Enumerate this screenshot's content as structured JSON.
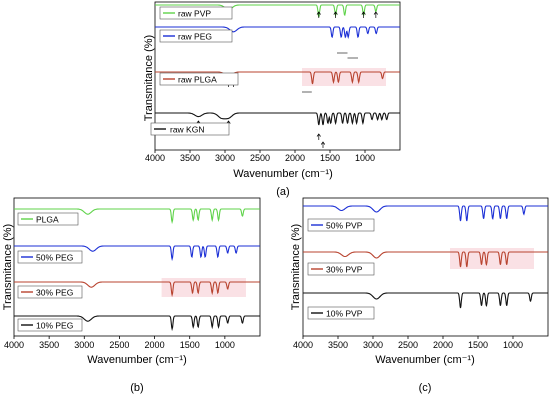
{
  "figure": {
    "colors": {
      "green": "#5fd34a",
      "blue": "#1b2fd6",
      "red": "#b8432f",
      "black": "#111111",
      "axis": "#000000",
      "highlight": "#f5bcc6"
    }
  },
  "chart_data": [
    {
      "type": "line",
      "panel_label": "(a)",
      "xlabel": "Wavenumber (cm⁻¹)",
      "ylabel": "Transmitance (%)",
      "xlim": [
        4000,
        500
      ],
      "x_reversed": true,
      "x_ticks": [
        4000,
        3500,
        3000,
        2500,
        2000,
        1500,
        1000
      ],
      "series": [
        {
          "name": "raw PVP",
          "color": "green",
          "peaks": [
            2950,
            1660,
            1420,
            1290,
            1020,
            845
          ]
        },
        {
          "name": "raw PEG",
          "color": "blue",
          "peaks": [
            2880,
            1470,
            1340,
            1280,
            1240,
            1100,
            960,
            840
          ]
        },
        {
          "name": "raw PLGA",
          "color": "red",
          "peaks": [
            2950,
            1750,
            1450,
            1380,
            1180,
            1090,
            750
          ]
        },
        {
          "name": "raw KGN",
          "color": "black",
          "peaks": [
            3380,
            3050,
            2950,
            1660,
            1600,
            1530,
            1490,
            1420,
            1320,
            1250,
            1180,
            1120,
            1030,
            900,
            820,
            760,
            690
          ]
        }
      ]
    },
    {
      "type": "line",
      "panel_label": "(b)",
      "xlabel": "Wavenumber (cm⁻¹)",
      "ylabel": "Transmitance (%)",
      "xlim": [
        4000,
        500
      ],
      "x_reversed": true,
      "x_ticks": [
        4000,
        3500,
        3000,
        2500,
        2000,
        1500,
        1000
      ],
      "series": [
        {
          "name": "PLGA",
          "color": "green",
          "peaks": [
            2950,
            1750,
            1450,
            1380,
            1180,
            1090,
            750
          ]
        },
        {
          "name": "50% PEG",
          "color": "blue",
          "peaks": [
            2880,
            1750,
            1470,
            1340,
            1280,
            1100,
            960,
            840
          ]
        },
        {
          "name": "30% PEG",
          "color": "red",
          "peaks": [
            2900,
            1750,
            1460,
            1380,
            1180,
            1100,
            960
          ]
        },
        {
          "name": "10% PEG",
          "color": "black",
          "peaks": [
            2950,
            1750,
            1450,
            1380,
            1180,
            1090,
            960,
            750
          ]
        }
      ]
    },
    {
      "type": "line",
      "panel_label": "(c)",
      "xlabel": "Wavenumber (cm⁻¹)",
      "ylabel": "Transmitance (%)",
      "xlim": [
        4000,
        500
      ],
      "x_reversed": true,
      "x_ticks": [
        4000,
        3500,
        3000,
        2500,
        2000,
        1500,
        1000
      ],
      "series": [
        {
          "name": "50% PVP",
          "color": "blue",
          "peaks": [
            3450,
            2950,
            1750,
            1660,
            1420,
            1290,
            1180,
            1090,
            845
          ]
        },
        {
          "name": "30% PVP",
          "color": "red",
          "peaks": [
            3400,
            2950,
            1750,
            1660,
            1450,
            1380,
            1180,
            1090
          ]
        },
        {
          "name": "10% PVP",
          "color": "black",
          "peaks": [
            2950,
            1750,
            1450,
            1380,
            1180,
            1090,
            750
          ]
        }
      ]
    }
  ]
}
